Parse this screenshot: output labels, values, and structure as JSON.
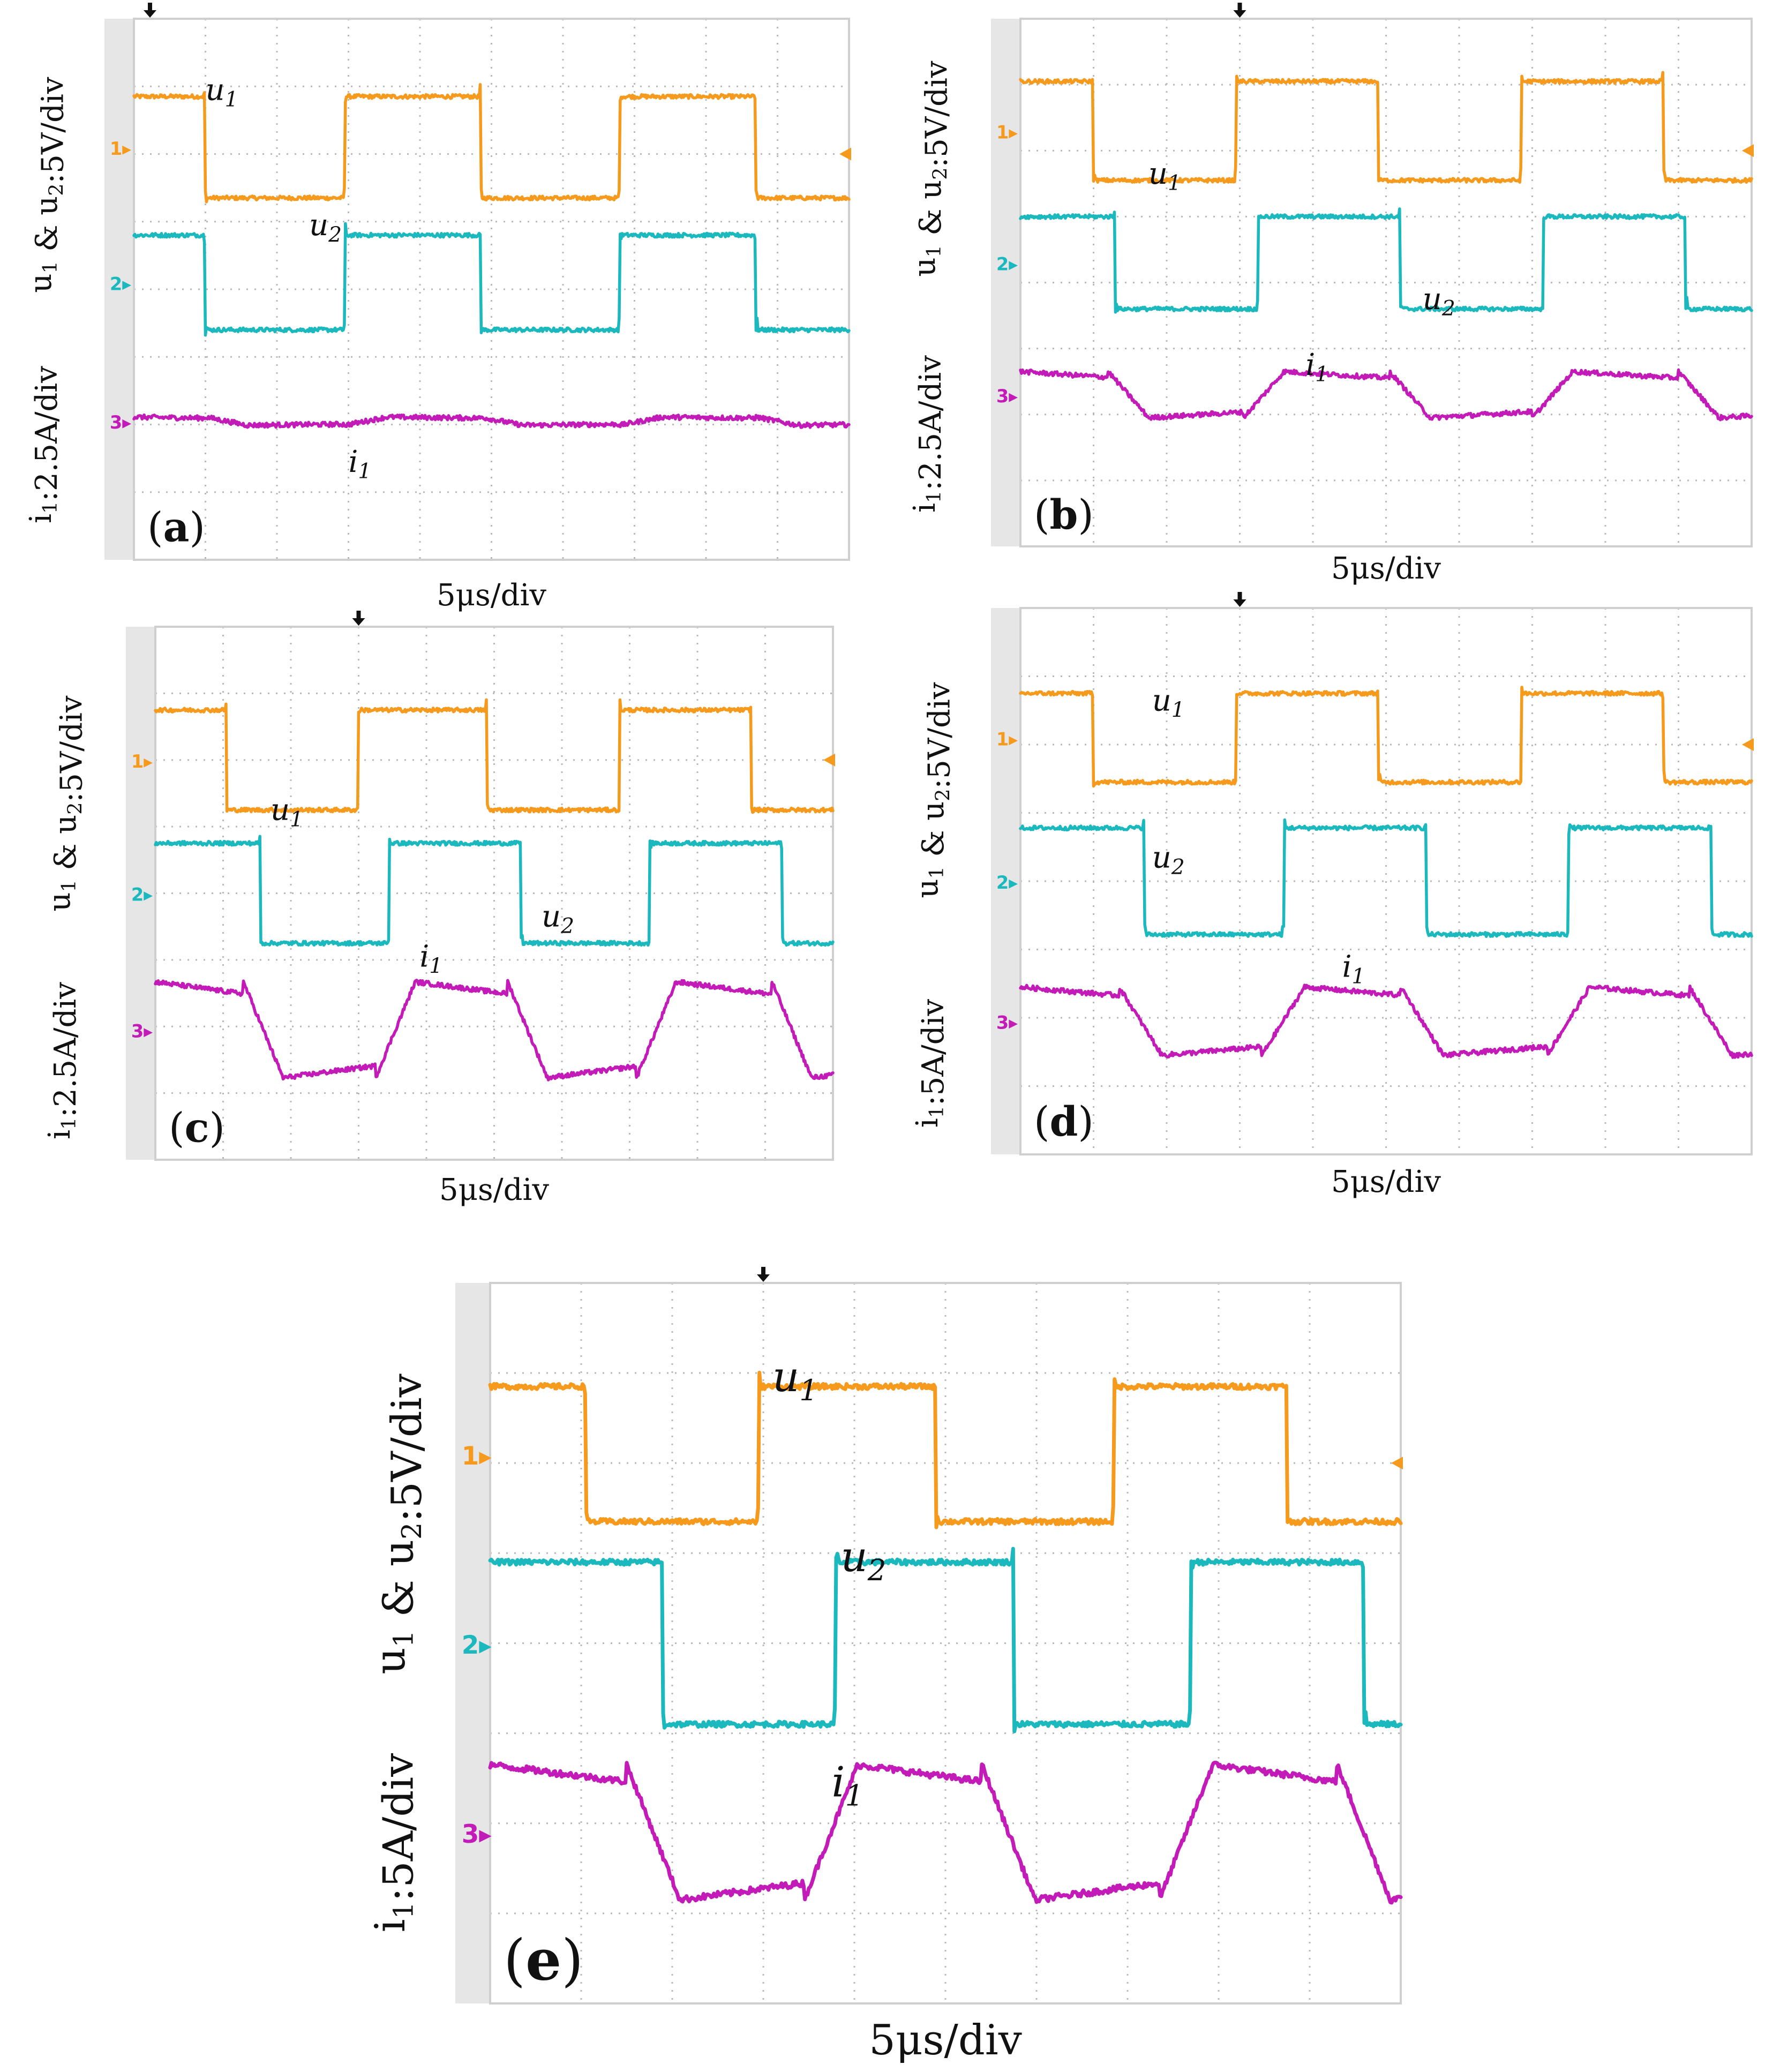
{
  "colors": {
    "u1": "#f59a1c",
    "u2": "#1bb8bd",
    "i1": "#c21bb8",
    "marker": "#111111",
    "grid": "#b8b8b8"
  },
  "chart_data": [
    {
      "type": "line",
      "panel_label": "(a)",
      "xlabel": "5μs/div",
      "ylabel_top": "u1 & u2:5V/div",
      "ylabel_bottom": "i1:2.5A/div",
      "xlim_div": [
        0,
        10
      ],
      "ylim_div": [
        0,
        8
      ],
      "grid": true,
      "channel_markers": [
        "1",
        "2",
        "3"
      ],
      "series": [
        {
          "name": "u1",
          "channel": "1",
          "offset_div": 6.1,
          "amplitude_div": 0.75,
          "pattern": "square",
          "edges_div": [
            1.0,
            2.95,
            4.85,
            6.8,
            8.7
          ],
          "start_level": "high",
          "trace_label": "u1"
        },
        {
          "name": "u2",
          "channel": "2",
          "offset_div": 4.1,
          "amplitude_div": 0.7,
          "pattern": "square",
          "edges_div": [
            1.0,
            2.95,
            4.85,
            6.8,
            8.7
          ],
          "start_level": "high",
          "trace_label": "u2"
        },
        {
          "name": "i1",
          "channel": "3",
          "offset_div": 2.05,
          "amplitude_div": 0.06,
          "pattern": "trapezoid",
          "edges_div": [
            1.0,
            2.95,
            4.85,
            6.8,
            8.7
          ],
          "start_level": "high",
          "trace_label": "i1"
        }
      ]
    },
    {
      "type": "line",
      "panel_label": "(b)",
      "xlabel": "5μs/div",
      "ylabel_top": "u1 & u2:5V/div",
      "ylabel_bottom": "i1:2.5A/div",
      "xlim_div": [
        0,
        10
      ],
      "ylim_div": [
        0,
        8
      ],
      "grid": true,
      "channel_markers": [
        "1",
        "2",
        "3"
      ],
      "series": [
        {
          "name": "u1",
          "channel": "1",
          "offset_div": 6.3,
          "amplitude_div": 0.75,
          "pattern": "square",
          "edges_div": [
            1.0,
            2.95,
            4.9,
            6.85,
            8.8
          ],
          "start_level": "high",
          "trace_label": "u1"
        },
        {
          "name": "u2",
          "channel": "2",
          "offset_div": 4.3,
          "amplitude_div": 0.7,
          "pattern": "square",
          "edges_div": [
            1.3,
            3.25,
            5.2,
            7.15,
            9.1
          ],
          "start_level": "high",
          "trace_label": "u2"
        },
        {
          "name": "i1",
          "channel": "3",
          "offset_div": 2.3,
          "amplitude_div": 0.35,
          "pattern": "trapezoid",
          "edges_div": [
            1.2,
            3.05,
            5.05,
            7.0,
            9.0
          ],
          "start_level": "high",
          "trace_label": "i1"
        }
      ]
    },
    {
      "type": "line",
      "panel_label": "(c)",
      "xlabel": "5μs/div",
      "ylabel_top": "u1 & u2:5V/div",
      "ylabel_bottom": "i1:2.5A/div",
      "xlim_div": [
        0,
        10
      ],
      "ylim_div": [
        0,
        8
      ],
      "grid": true,
      "channel_markers": [
        "1",
        "2",
        "3"
      ],
      "series": [
        {
          "name": "u1",
          "channel": "1",
          "offset_div": 6.0,
          "amplitude_div": 0.75,
          "pattern": "square",
          "edges_div": [
            1.05,
            3.0,
            4.9,
            6.85,
            8.8
          ],
          "start_level": "high",
          "trace_label": "u1"
        },
        {
          "name": "u2",
          "channel": "2",
          "offset_div": 4.0,
          "amplitude_div": 0.75,
          "pattern": "square",
          "edges_div": [
            1.55,
            3.45,
            5.4,
            7.3,
            9.25
          ],
          "start_level": "high",
          "trace_label": "u2"
        },
        {
          "name": "i1",
          "channel": "3",
          "offset_div": 1.95,
          "amplitude_div": 0.72,
          "pattern": "trapezoid",
          "edges_div": [
            1.3,
            3.25,
            5.2,
            7.1,
            9.1
          ],
          "start_level": "high",
          "trace_label": "i1"
        }
      ]
    },
    {
      "type": "line",
      "panel_label": "(d)",
      "xlabel": "5μs/div",
      "ylabel_top": "u1 & u2:5V/div",
      "ylabel_bottom": "i1:5A/div",
      "xlim_div": [
        0,
        10
      ],
      "ylim_div": [
        0,
        8
      ],
      "grid": true,
      "channel_markers": [
        "1",
        "2",
        "3"
      ],
      "series": [
        {
          "name": "u1",
          "channel": "1",
          "offset_div": 6.1,
          "amplitude_div": 0.65,
          "pattern": "square",
          "edges_div": [
            1.0,
            2.95,
            4.9,
            6.85,
            8.8
          ],
          "start_level": "high",
          "trace_label": "u1"
        },
        {
          "name": "u2",
          "channel": "2",
          "offset_div": 4.0,
          "amplitude_div": 0.78,
          "pattern": "square",
          "edges_div": [
            1.7,
            3.6,
            5.55,
            7.5,
            9.45
          ],
          "start_level": "high",
          "trace_label": "u2"
        },
        {
          "name": "i1",
          "channel": "3",
          "offset_div": 1.95,
          "amplitude_div": 0.5,
          "pattern": "trapezoid",
          "edges_div": [
            1.35,
            3.3,
            5.2,
            7.2,
            9.15
          ],
          "start_level": "high",
          "trace_label": "i1"
        }
      ]
    },
    {
      "type": "line",
      "panel_label": "(e)",
      "xlabel": "5μs/div",
      "ylabel_top": "u1 & u2:5V/div",
      "ylabel_bottom": "i1:5A/div",
      "xlim_div": [
        0,
        10
      ],
      "ylim_div": [
        0,
        8
      ],
      "grid": true,
      "channel_markers": [
        "1",
        "2",
        "3"
      ],
      "series": [
        {
          "name": "u1",
          "channel": "1",
          "offset_div": 6.1,
          "amplitude_div": 0.75,
          "pattern": "square",
          "edges_div": [
            1.05,
            2.95,
            4.9,
            6.85,
            8.75
          ],
          "start_level": "high",
          "trace_label": "u1"
        },
        {
          "name": "u2",
          "channel": "2",
          "offset_div": 4.0,
          "amplitude_div": 0.9,
          "pattern": "square",
          "edges_div": [
            1.9,
            3.8,
            5.75,
            7.7,
            9.6
          ],
          "start_level": "high",
          "trace_label": "u2"
        },
        {
          "name": "i1",
          "channel": "3",
          "offset_div": 1.9,
          "amplitude_div": 0.75,
          "pattern": "trapezoid",
          "edges_div": [
            1.5,
            3.45,
            5.4,
            7.35,
            9.3
          ],
          "start_level": "high",
          "trace_label": "i1"
        }
      ]
    }
  ]
}
